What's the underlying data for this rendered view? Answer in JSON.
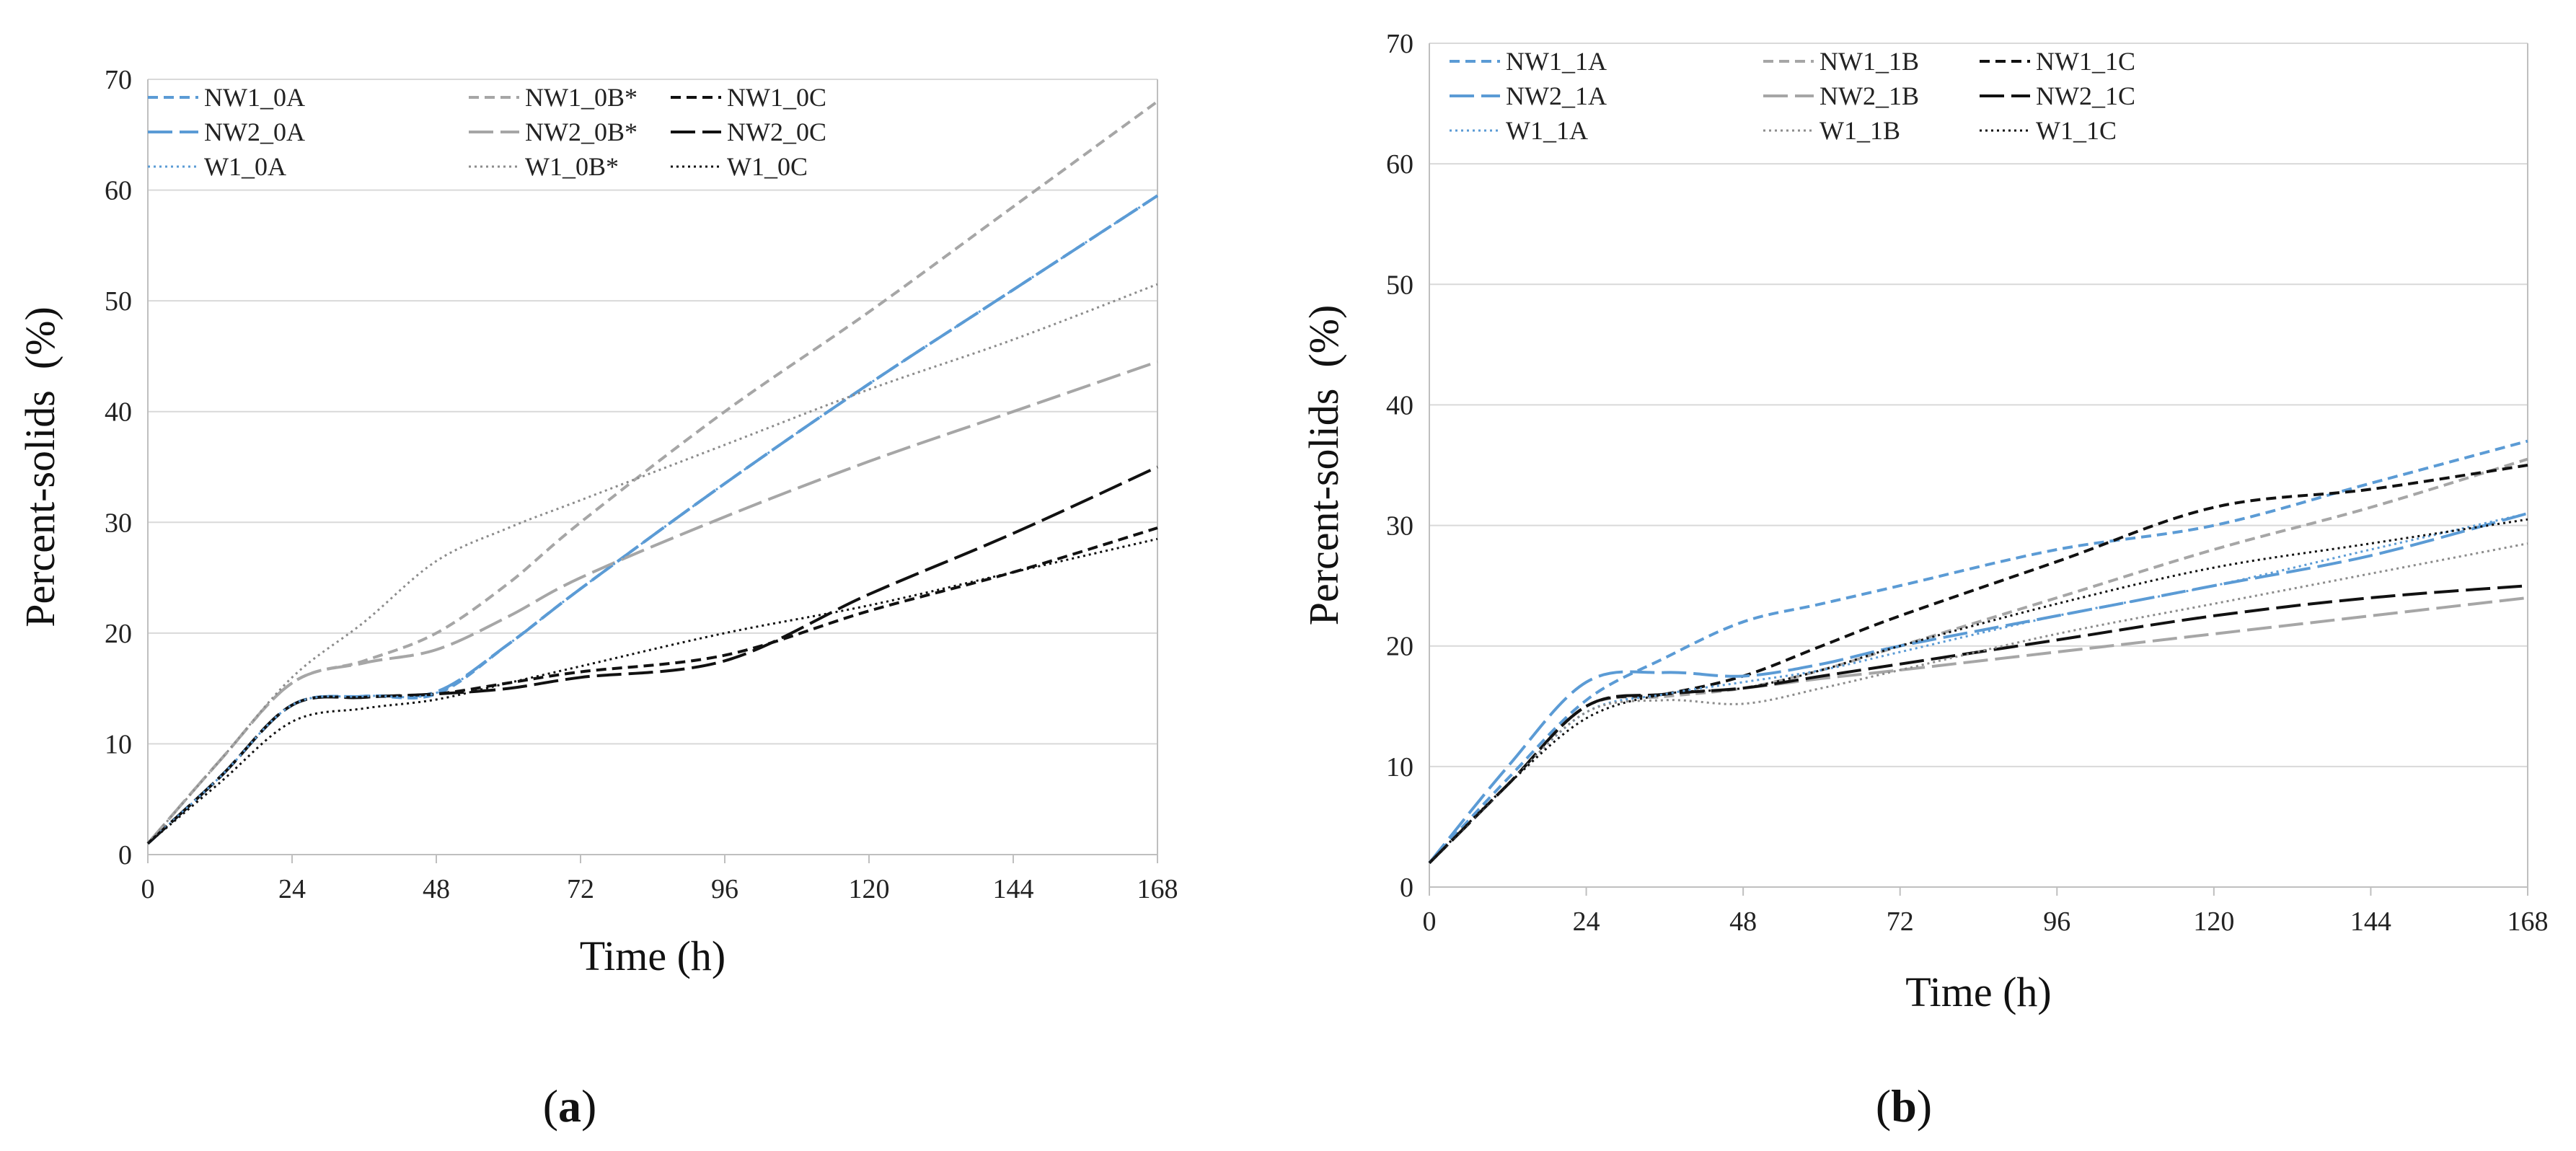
{
  "chart_data": [
    {
      "type": "line",
      "panel_label_open": "(",
      "panel_label_letter": "a",
      "panel_label_close": ")",
      "xlabel": "Time (h)",
      "ylabel": "Percent-solids  (%)",
      "xlim": [
        0,
        168
      ],
      "ylim": [
        0,
        70
      ],
      "xticks": [
        0,
        24,
        48,
        72,
        96,
        120,
        144,
        168
      ],
      "yticks": [
        0,
        10,
        20,
        30,
        40,
        50,
        60,
        70
      ],
      "grid": "horizontal",
      "legend": "top-left, 3 columns",
      "series": [
        {
          "name": "NW1_0A",
          "color": "#5b9bd5",
          "dash": "dashed-short",
          "x": [
            0,
            12,
            24,
            36,
            48,
            60,
            72,
            96,
            120,
            144,
            168
          ],
          "y": [
            1,
            7,
            13.5,
            14.3,
            14.5,
            19,
            24,
            33.5,
            42.5,
            51,
            59.5
          ]
        },
        {
          "name": "NW1_0B*",
          "color": "#a6a6a6",
          "dash": "dashed-short",
          "x": [
            0,
            12,
            24,
            36,
            48,
            60,
            72,
            96,
            120,
            144,
            168
          ],
          "y": [
            1,
            8.5,
            15.5,
            17.5,
            20,
            24.5,
            30,
            40,
            49,
            58.5,
            68
          ]
        },
        {
          "name": "NW1_0C",
          "color": "#111111",
          "dash": "dashed-short",
          "x": [
            0,
            12,
            24,
            36,
            48,
            60,
            72,
            96,
            120,
            144,
            168
          ],
          "y": [
            1,
            7,
            13.5,
            14.2,
            14.5,
            15.5,
            16.5,
            18,
            22,
            25.5,
            29.5
          ]
        },
        {
          "name": "NW2_0A",
          "color": "#5b9bd5",
          "dash": "dashed-long",
          "x": [
            0,
            12,
            24,
            36,
            48,
            60,
            72,
            96,
            120,
            144,
            168
          ],
          "y": [
            1,
            7,
            13.5,
            14.3,
            14.7,
            19,
            24,
            33.5,
            42.5,
            51,
            59.5
          ]
        },
        {
          "name": "NW2_0B*",
          "color": "#a6a6a6",
          "dash": "dashed-long",
          "x": [
            0,
            12,
            24,
            36,
            48,
            60,
            72,
            96,
            120,
            144,
            168
          ],
          "y": [
            1,
            8.5,
            15.5,
            17.3,
            18.5,
            21.5,
            25,
            30.5,
            35.5,
            40,
            44.5
          ]
        },
        {
          "name": "NW2_0C",
          "color": "#111111",
          "dash": "dashed-long",
          "x": [
            0,
            12,
            24,
            36,
            48,
            60,
            72,
            96,
            120,
            144,
            168
          ],
          "y": [
            1,
            7,
            13.5,
            14.2,
            14.5,
            15,
            16,
            17.5,
            23.5,
            29,
            35
          ]
        },
        {
          "name": "W1_0A",
          "color": "#5b9bd5",
          "dash": "dotted",
          "x": [
            0,
            12,
            24,
            36,
            48,
            60,
            72,
            96,
            120,
            144,
            168
          ],
          "y": [
            1,
            7,
            13.5,
            14.3,
            14.6,
            19,
            24,
            33.5,
            42.5,
            51,
            59.5
          ]
        },
        {
          "name": "W1_0B*",
          "color": "#8c8c8c",
          "dash": "dotted",
          "x": [
            0,
            12,
            24,
            36,
            48,
            60,
            72,
            96,
            120,
            144,
            168
          ],
          "y": [
            1,
            8.5,
            16,
            21,
            26.5,
            29.5,
            32,
            37,
            42,
            46.5,
            51.5
          ]
        },
        {
          "name": "W1_0C",
          "color": "#111111",
          "dash": "dotted",
          "x": [
            0,
            12,
            24,
            36,
            48,
            60,
            72,
            96,
            120,
            144,
            168
          ],
          "y": [
            1,
            6.5,
            12,
            13.2,
            14,
            15.5,
            17,
            20,
            22.5,
            25.5,
            28.5
          ]
        }
      ]
    },
    {
      "type": "line",
      "panel_label_open": "(",
      "panel_label_letter": "b",
      "panel_label_close": ")",
      "xlabel": "Time (h)",
      "ylabel": "Percent-solids  (%)",
      "xlim": [
        0,
        168
      ],
      "ylim": [
        0,
        70
      ],
      "xticks": [
        0,
        24,
        48,
        72,
        96,
        120,
        144,
        168
      ],
      "yticks": [
        0,
        10,
        20,
        30,
        40,
        50,
        60,
        70
      ],
      "grid": "horizontal",
      "legend": "top-left, 3 columns",
      "series": [
        {
          "name": "NW1_1A",
          "color": "#5b9bd5",
          "dash": "dashed-short",
          "x": [
            0,
            12,
            24,
            36,
            48,
            60,
            72,
            96,
            120,
            144,
            168
          ],
          "y": [
            2,
            9,
            15.5,
            19,
            22,
            23.5,
            25,
            28,
            30,
            33.5,
            37
          ]
        },
        {
          "name": "NW1_1B",
          "color": "#a6a6a6",
          "dash": "dashed-short",
          "x": [
            0,
            12,
            24,
            36,
            48,
            60,
            72,
            96,
            120,
            144,
            168
          ],
          "y": [
            2,
            8.5,
            15,
            15.8,
            16.5,
            18,
            20,
            24,
            28,
            31.5,
            35.5
          ]
        },
        {
          "name": "NW1_1C",
          "color": "#111111",
          "dash": "dashed-short",
          "x": [
            0,
            12,
            24,
            36,
            48,
            60,
            72,
            96,
            120,
            144,
            168
          ],
          "y": [
            2,
            8.5,
            15,
            16,
            17.5,
            20,
            22.5,
            27,
            31.5,
            33,
            35
          ]
        },
        {
          "name": "NW2_1A",
          "color": "#5b9bd5",
          "dash": "dashed-long",
          "x": [
            0,
            12,
            24,
            36,
            48,
            60,
            72,
            96,
            120,
            144,
            168
          ],
          "y": [
            2,
            10,
            17,
            17.8,
            17.5,
            18.5,
            20,
            22.5,
            25,
            27.5,
            31
          ]
        },
        {
          "name": "NW2_1B",
          "color": "#a6a6a6",
          "dash": "dashed-long",
          "x": [
            0,
            12,
            24,
            36,
            48,
            60,
            72,
            96,
            120,
            144,
            168
          ],
          "y": [
            2,
            8.5,
            15,
            16,
            16.5,
            17.3,
            18,
            19.5,
            21,
            22.5,
            24
          ]
        },
        {
          "name": "NW2_1C",
          "color": "#111111",
          "dash": "dashed-long",
          "x": [
            0,
            12,
            24,
            36,
            48,
            60,
            72,
            96,
            120,
            144,
            168
          ],
          "y": [
            2,
            8.5,
            15,
            16,
            16.5,
            17.5,
            18.5,
            20.5,
            22.5,
            24,
            25
          ]
        },
        {
          "name": "W1_1A",
          "color": "#5b9bd5",
          "dash": "dotted",
          "x": [
            0,
            12,
            24,
            36,
            48,
            60,
            72,
            96,
            120,
            144,
            168
          ],
          "y": [
            2,
            8.5,
            14.5,
            16,
            17,
            18,
            19.5,
            22.5,
            25,
            28,
            31
          ]
        },
        {
          "name": "W1_1B",
          "color": "#8c8c8c",
          "dash": "dotted",
          "x": [
            0,
            12,
            24,
            36,
            48,
            60,
            72,
            96,
            120,
            144,
            168
          ],
          "y": [
            2,
            8.5,
            14.5,
            15.5,
            15.2,
            16.5,
            18,
            21,
            23.5,
            26,
            28.5
          ]
        },
        {
          "name": "W1_1C",
          "color": "#111111",
          "dash": "dotted",
          "x": [
            0,
            12,
            24,
            36,
            48,
            60,
            72,
            96,
            120,
            144,
            168
          ],
          "y": [
            2,
            8.5,
            14,
            16,
            16.5,
            18,
            20,
            23.5,
            26.5,
            28.5,
            30.5
          ]
        }
      ]
    }
  ]
}
